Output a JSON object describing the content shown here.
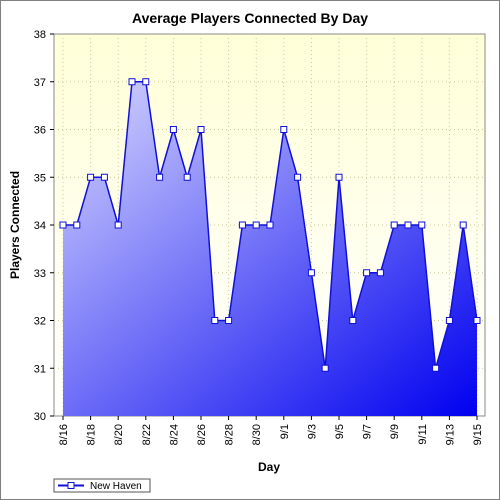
{
  "chart_data": {
    "type": "area",
    "title": "Average Players Connected By Day",
    "xlabel": "Day",
    "ylabel": "Players Connected",
    "ylim": [
      30,
      38
    ],
    "yticks": [
      30,
      31,
      32,
      33,
      34,
      35,
      36,
      37,
      38
    ],
    "grid": true,
    "legend_position": "bottom-left",
    "x": [
      "8/16",
      "8/17",
      "8/18",
      "8/19",
      "8/20",
      "8/21",
      "8/22",
      "8/23",
      "8/24",
      "8/25",
      "8/26",
      "8/27",
      "8/28",
      "8/29",
      "8/30",
      "8/31",
      "9/1",
      "9/2",
      "9/3",
      "9/4",
      "9/5",
      "9/6",
      "9/7",
      "9/8",
      "9/9",
      "9/10",
      "9/11",
      "9/12",
      "9/13",
      "9/14",
      "9/15"
    ],
    "xtick_labels": [
      "8/16",
      "8/18",
      "8/20",
      "8/22",
      "8/24",
      "8/26",
      "8/28",
      "8/30",
      "9/1",
      "9/3",
      "9/5",
      "9/7",
      "9/9",
      "9/11",
      "9/13",
      "9/15"
    ],
    "series": [
      {
        "name": "New Haven",
        "values": [
          34,
          34,
          35,
          35,
          34,
          37,
          37,
          35,
          36,
          35,
          36,
          32,
          32,
          34,
          34,
          34,
          36,
          35,
          33,
          31,
          35,
          32,
          33,
          33,
          34,
          34,
          34,
          31,
          32,
          34,
          32
        ]
      }
    ],
    "colors": {
      "line": "#1010d8",
      "plot_bg_top": "#ffffd8",
      "plot_bg_bottom": "#ffffff",
      "fill_top": "#d8d8ff",
      "fill_bottom": "#0000f0"
    }
  }
}
